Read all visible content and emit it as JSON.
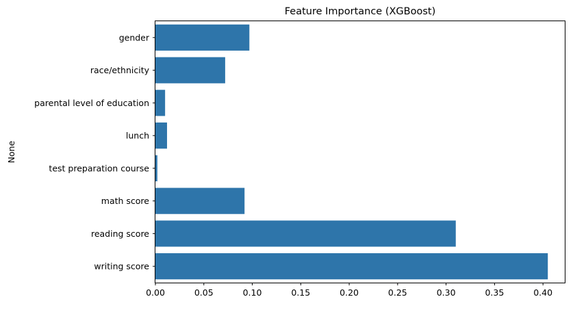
{
  "chart_data": {
    "type": "bar",
    "orientation": "horizontal",
    "title": "Feature Importance (XGBoost)",
    "xlabel": "",
    "ylabel": "None",
    "categories": [
      "gender",
      "race/ethnicity",
      "parental level of education",
      "lunch",
      "test preparation course",
      "math score",
      "reading score",
      "writing score"
    ],
    "values": [
      0.097,
      0.072,
      0.01,
      0.012,
      0.002,
      0.092,
      0.31,
      0.405
    ],
    "xlim": [
      0.0,
      0.4225
    ],
    "xticks": [
      0.0,
      0.05,
      0.1,
      0.15,
      0.2,
      0.25,
      0.3,
      0.35,
      0.4
    ],
    "xtick_labels": [
      "0.00",
      "0.05",
      "0.10",
      "0.15",
      "0.20",
      "0.25",
      "0.30",
      "0.35",
      "0.40"
    ],
    "grid": false,
    "bar_color": "#2e75aa"
  }
}
